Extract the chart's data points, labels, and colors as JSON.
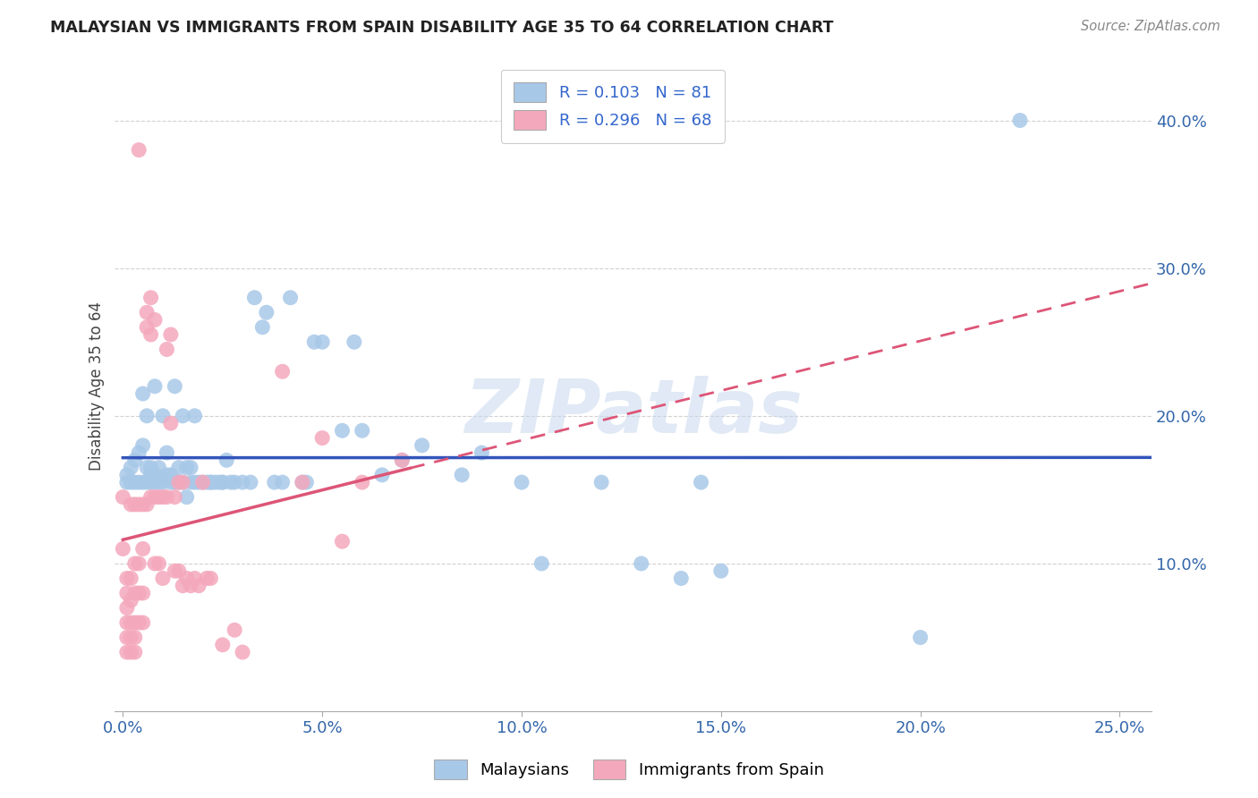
{
  "title": "MALAYSIAN VS IMMIGRANTS FROM SPAIN DISABILITY AGE 35 TO 64 CORRELATION CHART",
  "source": "Source: ZipAtlas.com",
  "ylabel_label": "Disability Age 35 to 64",
  "x_tick_labels": [
    "0.0%",
    "5.0%",
    "10.0%",
    "15.0%",
    "20.0%",
    "25.0%"
  ],
  "x_tick_vals": [
    0.0,
    0.05,
    0.1,
    0.15,
    0.2,
    0.25
  ],
  "y_tick_labels": [
    "10.0%",
    "20.0%",
    "30.0%",
    "40.0%"
  ],
  "y_tick_vals": [
    0.1,
    0.2,
    0.3,
    0.4
  ],
  "xlim": [
    -0.002,
    0.258
  ],
  "ylim": [
    0.0,
    0.44
  ],
  "blue_R": 0.103,
  "blue_N": 81,
  "pink_R": 0.296,
  "pink_N": 68,
  "blue_color": "#A8C8E8",
  "pink_color": "#F4A8BC",
  "blue_line_color": "#3355BB",
  "pink_line_color": "#DD5577",
  "watermark": "ZIPatlas",
  "blue_scatter": [
    [
      0.001,
      0.16
    ],
    [
      0.001,
      0.155
    ],
    [
      0.002,
      0.165
    ],
    [
      0.002,
      0.155
    ],
    [
      0.003,
      0.17
    ],
    [
      0.003,
      0.155
    ],
    [
      0.004,
      0.175
    ],
    [
      0.004,
      0.155
    ],
    [
      0.005,
      0.18
    ],
    [
      0.005,
      0.155
    ],
    [
      0.005,
      0.215
    ],
    [
      0.006,
      0.2
    ],
    [
      0.006,
      0.165
    ],
    [
      0.006,
      0.155
    ],
    [
      0.007,
      0.16
    ],
    [
      0.007,
      0.165
    ],
    [
      0.007,
      0.155
    ],
    [
      0.008,
      0.22
    ],
    [
      0.008,
      0.16
    ],
    [
      0.008,
      0.155
    ],
    [
      0.009,
      0.165
    ],
    [
      0.009,
      0.155
    ],
    [
      0.01,
      0.2
    ],
    [
      0.01,
      0.155
    ],
    [
      0.011,
      0.175
    ],
    [
      0.011,
      0.16
    ],
    [
      0.012,
      0.16
    ],
    [
      0.012,
      0.155
    ],
    [
      0.013,
      0.22
    ],
    [
      0.013,
      0.155
    ],
    [
      0.014,
      0.165
    ],
    [
      0.014,
      0.155
    ],
    [
      0.015,
      0.2
    ],
    [
      0.015,
      0.155
    ],
    [
      0.016,
      0.165
    ],
    [
      0.016,
      0.145
    ],
    [
      0.017,
      0.165
    ],
    [
      0.017,
      0.155
    ],
    [
      0.018,
      0.2
    ],
    [
      0.018,
      0.155
    ],
    [
      0.019,
      0.155
    ],
    [
      0.02,
      0.155
    ],
    [
      0.021,
      0.155
    ],
    [
      0.022,
      0.155
    ],
    [
      0.022,
      0.155
    ],
    [
      0.023,
      0.155
    ],
    [
      0.024,
      0.155
    ],
    [
      0.025,
      0.155
    ],
    [
      0.025,
      0.155
    ],
    [
      0.026,
      0.17
    ],
    [
      0.027,
      0.155
    ],
    [
      0.028,
      0.155
    ],
    [
      0.03,
      0.155
    ],
    [
      0.032,
      0.155
    ],
    [
      0.033,
      0.28
    ],
    [
      0.035,
      0.26
    ],
    [
      0.036,
      0.27
    ],
    [
      0.038,
      0.155
    ],
    [
      0.04,
      0.155
    ],
    [
      0.042,
      0.28
    ],
    [
      0.045,
      0.155
    ],
    [
      0.046,
      0.155
    ],
    [
      0.048,
      0.25
    ],
    [
      0.05,
      0.25
    ],
    [
      0.055,
      0.19
    ],
    [
      0.058,
      0.25
    ],
    [
      0.06,
      0.19
    ],
    [
      0.065,
      0.16
    ],
    [
      0.07,
      0.17
    ],
    [
      0.075,
      0.18
    ],
    [
      0.085,
      0.16
    ],
    [
      0.09,
      0.175
    ],
    [
      0.1,
      0.155
    ],
    [
      0.105,
      0.1
    ],
    [
      0.12,
      0.155
    ],
    [
      0.13,
      0.1
    ],
    [
      0.14,
      0.09
    ],
    [
      0.145,
      0.155
    ],
    [
      0.15,
      0.095
    ],
    [
      0.2,
      0.05
    ],
    [
      0.225,
      0.4
    ]
  ],
  "pink_scatter": [
    [
      0.0,
      0.145
    ],
    [
      0.0,
      0.11
    ],
    [
      0.001,
      0.09
    ],
    [
      0.001,
      0.08
    ],
    [
      0.001,
      0.07
    ],
    [
      0.001,
      0.06
    ],
    [
      0.001,
      0.05
    ],
    [
      0.001,
      0.04
    ],
    [
      0.002,
      0.14
    ],
    [
      0.002,
      0.09
    ],
    [
      0.002,
      0.075
    ],
    [
      0.002,
      0.06
    ],
    [
      0.002,
      0.05
    ],
    [
      0.002,
      0.04
    ],
    [
      0.003,
      0.14
    ],
    [
      0.003,
      0.1
    ],
    [
      0.003,
      0.08
    ],
    [
      0.003,
      0.06
    ],
    [
      0.003,
      0.05
    ],
    [
      0.003,
      0.04
    ],
    [
      0.004,
      0.38
    ],
    [
      0.004,
      0.14
    ],
    [
      0.004,
      0.1
    ],
    [
      0.004,
      0.08
    ],
    [
      0.004,
      0.06
    ],
    [
      0.005,
      0.14
    ],
    [
      0.005,
      0.11
    ],
    [
      0.005,
      0.08
    ],
    [
      0.005,
      0.06
    ],
    [
      0.006,
      0.27
    ],
    [
      0.006,
      0.26
    ],
    [
      0.006,
      0.14
    ],
    [
      0.007,
      0.28
    ],
    [
      0.007,
      0.255
    ],
    [
      0.007,
      0.145
    ],
    [
      0.008,
      0.265
    ],
    [
      0.008,
      0.145
    ],
    [
      0.008,
      0.1
    ],
    [
      0.009,
      0.145
    ],
    [
      0.009,
      0.1
    ],
    [
      0.01,
      0.145
    ],
    [
      0.01,
      0.09
    ],
    [
      0.011,
      0.245
    ],
    [
      0.011,
      0.145
    ],
    [
      0.012,
      0.255
    ],
    [
      0.012,
      0.195
    ],
    [
      0.013,
      0.145
    ],
    [
      0.013,
      0.095
    ],
    [
      0.014,
      0.155
    ],
    [
      0.014,
      0.095
    ],
    [
      0.015,
      0.155
    ],
    [
      0.015,
      0.085
    ],
    [
      0.016,
      0.09
    ],
    [
      0.017,
      0.085
    ],
    [
      0.018,
      0.09
    ],
    [
      0.019,
      0.085
    ],
    [
      0.02,
      0.155
    ],
    [
      0.021,
      0.09
    ],
    [
      0.022,
      0.09
    ],
    [
      0.025,
      0.045
    ],
    [
      0.028,
      0.055
    ],
    [
      0.03,
      0.04
    ],
    [
      0.04,
      0.23
    ],
    [
      0.045,
      0.155
    ],
    [
      0.05,
      0.185
    ],
    [
      0.055,
      0.115
    ],
    [
      0.06,
      0.155
    ],
    [
      0.07,
      0.17
    ]
  ]
}
